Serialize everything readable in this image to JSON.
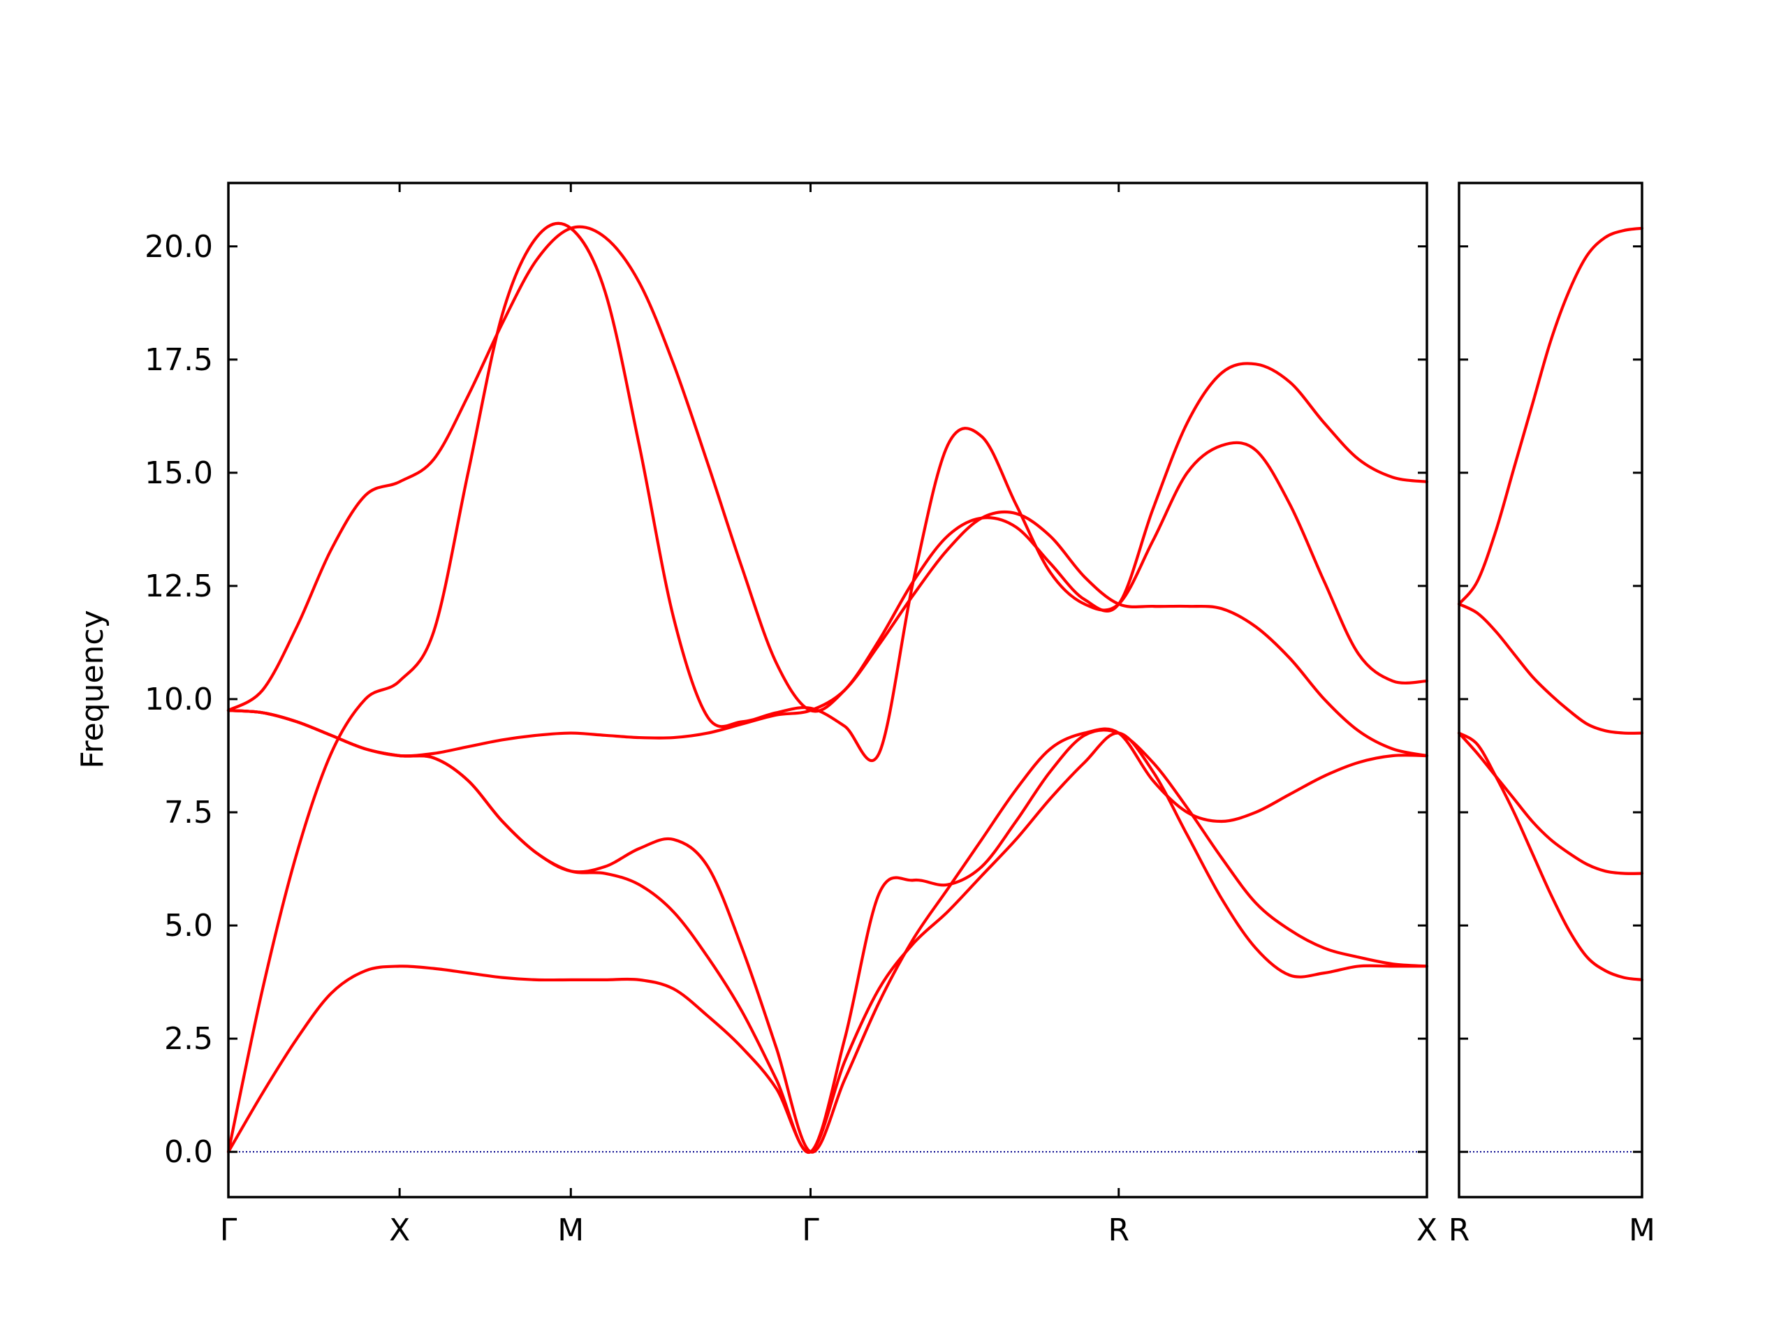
{
  "chart_data": {
    "type": "line",
    "ylabel": "Frequency",
    "ylim": [
      -1.0,
      21.4
    ],
    "yticks": [
      0.0,
      2.5,
      5.0,
      7.5,
      10.0,
      12.5,
      15.0,
      17.5,
      20.0
    ],
    "ytick_labels": [
      "0.0",
      "2.5",
      "5.0",
      "7.5",
      "10.0",
      "12.5",
      "15.0",
      "17.5",
      "20.0"
    ],
    "line_color": "#ff0000",
    "zero_line_color": "#00008b",
    "panels": [
      {
        "xlim": [
          0.0,
          3.5
        ],
        "xticks": [
          0.0,
          0.5,
          1.0,
          1.7,
          2.6,
          3.5
        ],
        "xtick_labels": [
          "Γ",
          "X",
          "M",
          "Γ",
          "R",
          "X"
        ],
        "series": [
          {
            "x": [
              0,
              0.1,
              0.2,
              0.3,
              0.4,
              0.5,
              0.6,
              0.7,
              0.8,
              0.9,
              1.0,
              1.1,
              1.2,
              1.3,
              1.4,
              1.5,
              1.6,
              1.7,
              1.8,
              1.9,
              2.0,
              2.1,
              2.2,
              2.3,
              2.4,
              2.5,
              2.6,
              2.7,
              2.8,
              2.9,
              3.0,
              3.1,
              3.2,
              3.3,
              3.4,
              3.5
            ],
            "y": [
              0.0,
              1.3,
              2.5,
              3.5,
              4.0,
              4.1,
              4.05,
              3.95,
              3.85,
              3.8,
              3.8,
              3.8,
              3.8,
              3.6,
              3.0,
              2.3,
              1.4,
              0.0,
              2.0,
              3.6,
              4.6,
              5.3,
              6.1,
              6.9,
              7.8,
              8.6,
              9.25,
              8.4,
              7.0,
              5.6,
              4.5,
              3.9,
              3.95,
              4.1,
              4.1,
              4.1
            ]
          },
          {
            "x": [
              0,
              0.1,
              0.2,
              0.3,
              0.4,
              0.5,
              0.6,
              0.7,
              0.8,
              0.9,
              1.0,
              1.1,
              1.2,
              1.3,
              1.4,
              1.5,
              1.6,
              1.7,
              1.8,
              1.9,
              2.0,
              2.1,
              2.2,
              2.3,
              2.4,
              2.5,
              2.6,
              2.7,
              2.8,
              2.9,
              3.0,
              3.1,
              3.2,
              3.3,
              3.4,
              3.5
            ],
            "y": [
              0.0,
              3.6,
              6.6,
              8.8,
              10.0,
              10.4,
              11.5,
              15.0,
              18.5,
              20.2,
              20.4,
              19.0,
              15.6,
              11.8,
              9.6,
              9.5,
              9.7,
              9.8,
              9.4,
              8.8,
              12.6,
              15.6,
              15.8,
              14.3,
              12.8,
              12.1,
              12.1,
              13.5,
              15.0,
              15.6,
              15.5,
              14.3,
              12.6,
              11.0,
              10.4,
              10.4
            ]
          },
          {
            "x": [
              0,
              0.1,
              0.2,
              0.3,
              0.4,
              0.5,
              0.6,
              0.7,
              0.8,
              0.9,
              1.0,
              1.1,
              1.2,
              1.3,
              1.4,
              1.5,
              1.6,
              1.7,
              1.8,
              1.9,
              2.0,
              2.1,
              2.2,
              2.3,
              2.4,
              2.5,
              2.6,
              2.7,
              2.8,
              2.9,
              3.0,
              3.1,
              3.2,
              3.3,
              3.4,
              3.5
            ],
            "y": [
              9.75,
              9.7,
              9.5,
              9.2,
              8.9,
              8.75,
              8.7,
              8.2,
              7.3,
              6.6,
              6.2,
              6.3,
              6.7,
              6.9,
              6.3,
              4.5,
              2.3,
              0.0,
              1.6,
              3.3,
              4.7,
              5.8,
              6.9,
              8.0,
              8.9,
              9.25,
              9.25,
              8.2,
              7.5,
              7.3,
              7.5,
              7.9,
              8.3,
              8.6,
              8.75,
              8.75
            ]
          },
          {
            "x": [
              0,
              0.1,
              0.2,
              0.3,
              0.4,
              0.5,
              0.6,
              0.7,
              0.8,
              0.9,
              1.0,
              1.1,
              1.2,
              1.3,
              1.4,
              1.5,
              1.6,
              1.7,
              1.8,
              1.9,
              2.0,
              2.1,
              2.2,
              2.3,
              2.4,
              2.5,
              2.6,
              2.7,
              2.8,
              2.9,
              3.0,
              3.1,
              3.2,
              3.3,
              3.4,
              3.5
            ],
            "y": [
              9.75,
              9.7,
              9.5,
              9.2,
              8.9,
              8.75,
              8.7,
              8.2,
              7.3,
              6.6,
              6.2,
              6.15,
              5.9,
              5.3,
              4.3,
              3.1,
              1.6,
              0.0,
              2.5,
              5.7,
              6.0,
              5.9,
              6.3,
              7.3,
              8.4,
              9.2,
              9.25,
              8.6,
              7.6,
              6.5,
              5.5,
              4.9,
              4.5,
              4.3,
              4.15,
              4.1
            ]
          },
          {
            "x": [
              0,
              0.1,
              0.2,
              0.3,
              0.4,
              0.5,
              0.6,
              0.7,
              0.8,
              0.9,
              1.0,
              1.1,
              1.2,
              1.3,
              1.4,
              1.5,
              1.6,
              1.7,
              1.8,
              1.9,
              2.0,
              2.1,
              2.2,
              2.3,
              2.4,
              2.5,
              2.6,
              2.7,
              2.8,
              2.9,
              3.0,
              3.1,
              3.2,
              3.3,
              3.4,
              3.5
            ],
            "y": [
              9.75,
              9.7,
              9.5,
              9.2,
              8.9,
              8.75,
              8.8,
              8.95,
              9.1,
              9.2,
              9.25,
              9.2,
              9.15,
              9.15,
              9.25,
              9.45,
              9.65,
              9.75,
              10.2,
              11.2,
              12.3,
              13.3,
              14.0,
              14.1,
              13.6,
              12.7,
              12.1,
              12.05,
              12.05,
              12.0,
              11.6,
              10.9,
              10.0,
              9.3,
              8.9,
              8.75
            ]
          },
          {
            "x": [
              0,
              0.1,
              0.2,
              0.3,
              0.4,
              0.5,
              0.6,
              0.7,
              0.8,
              0.9,
              1.0,
              1.1,
              1.2,
              1.3,
              1.4,
              1.5,
              1.6,
              1.7,
              1.8,
              1.9,
              2.0,
              2.1,
              2.2,
              2.3,
              2.4,
              2.5,
              2.6,
              2.7,
              2.8,
              2.9,
              3.0,
              3.1,
              3.2,
              3.3,
              3.4,
              3.5
            ],
            "y": [
              9.75,
              10.2,
              11.6,
              13.3,
              14.5,
              14.8,
              15.3,
              16.7,
              18.3,
              19.7,
              20.4,
              20.2,
              19.2,
              17.4,
              15.2,
              12.9,
              10.8,
              9.75,
              10.2,
              11.3,
              12.6,
              13.6,
              14.0,
              13.8,
              13.0,
              12.2,
              12.1,
              14.2,
              16.1,
              17.2,
              17.4,
              17.0,
              16.1,
              15.3,
              14.9,
              14.8
            ]
          }
        ]
      },
      {
        "xlim": [
          0.0,
          0.5
        ],
        "xticks": [
          0.0,
          0.5
        ],
        "xtick_labels": [
          "R",
          "M"
        ],
        "series": [
          {
            "x": [
              0,
              0.05,
              0.1,
              0.15,
              0.2,
              0.25,
              0.3,
              0.35,
              0.4,
              0.45,
              0.5
            ],
            "y": [
              9.25,
              9.0,
              8.3,
              7.5,
              6.6,
              5.7,
              4.9,
              4.3,
              4.0,
              3.85,
              3.8
            ]
          },
          {
            "x": [
              0,
              0.05,
              0.1,
              0.15,
              0.2,
              0.25,
              0.3,
              0.35,
              0.4,
              0.45,
              0.5
            ],
            "y": [
              9.25,
              8.8,
              8.3,
              7.8,
              7.3,
              6.9,
              6.6,
              6.35,
              6.2,
              6.15,
              6.15
            ]
          },
          {
            "x": [
              0,
              0.05,
              0.1,
              0.15,
              0.2,
              0.25,
              0.3,
              0.35,
              0.4,
              0.45,
              0.5
            ],
            "y": [
              12.1,
              11.9,
              11.5,
              11.0,
              10.5,
              10.1,
              9.75,
              9.45,
              9.3,
              9.25,
              9.25
            ]
          },
          {
            "x": [
              0,
              0.05,
              0.1,
              0.15,
              0.2,
              0.25,
              0.3,
              0.35,
              0.4,
              0.45,
              0.5
            ],
            "y": [
              12.1,
              12.6,
              13.7,
              15.1,
              16.5,
              17.9,
              19.0,
              19.8,
              20.2,
              20.35,
              20.4
            ]
          }
        ]
      }
    ]
  }
}
